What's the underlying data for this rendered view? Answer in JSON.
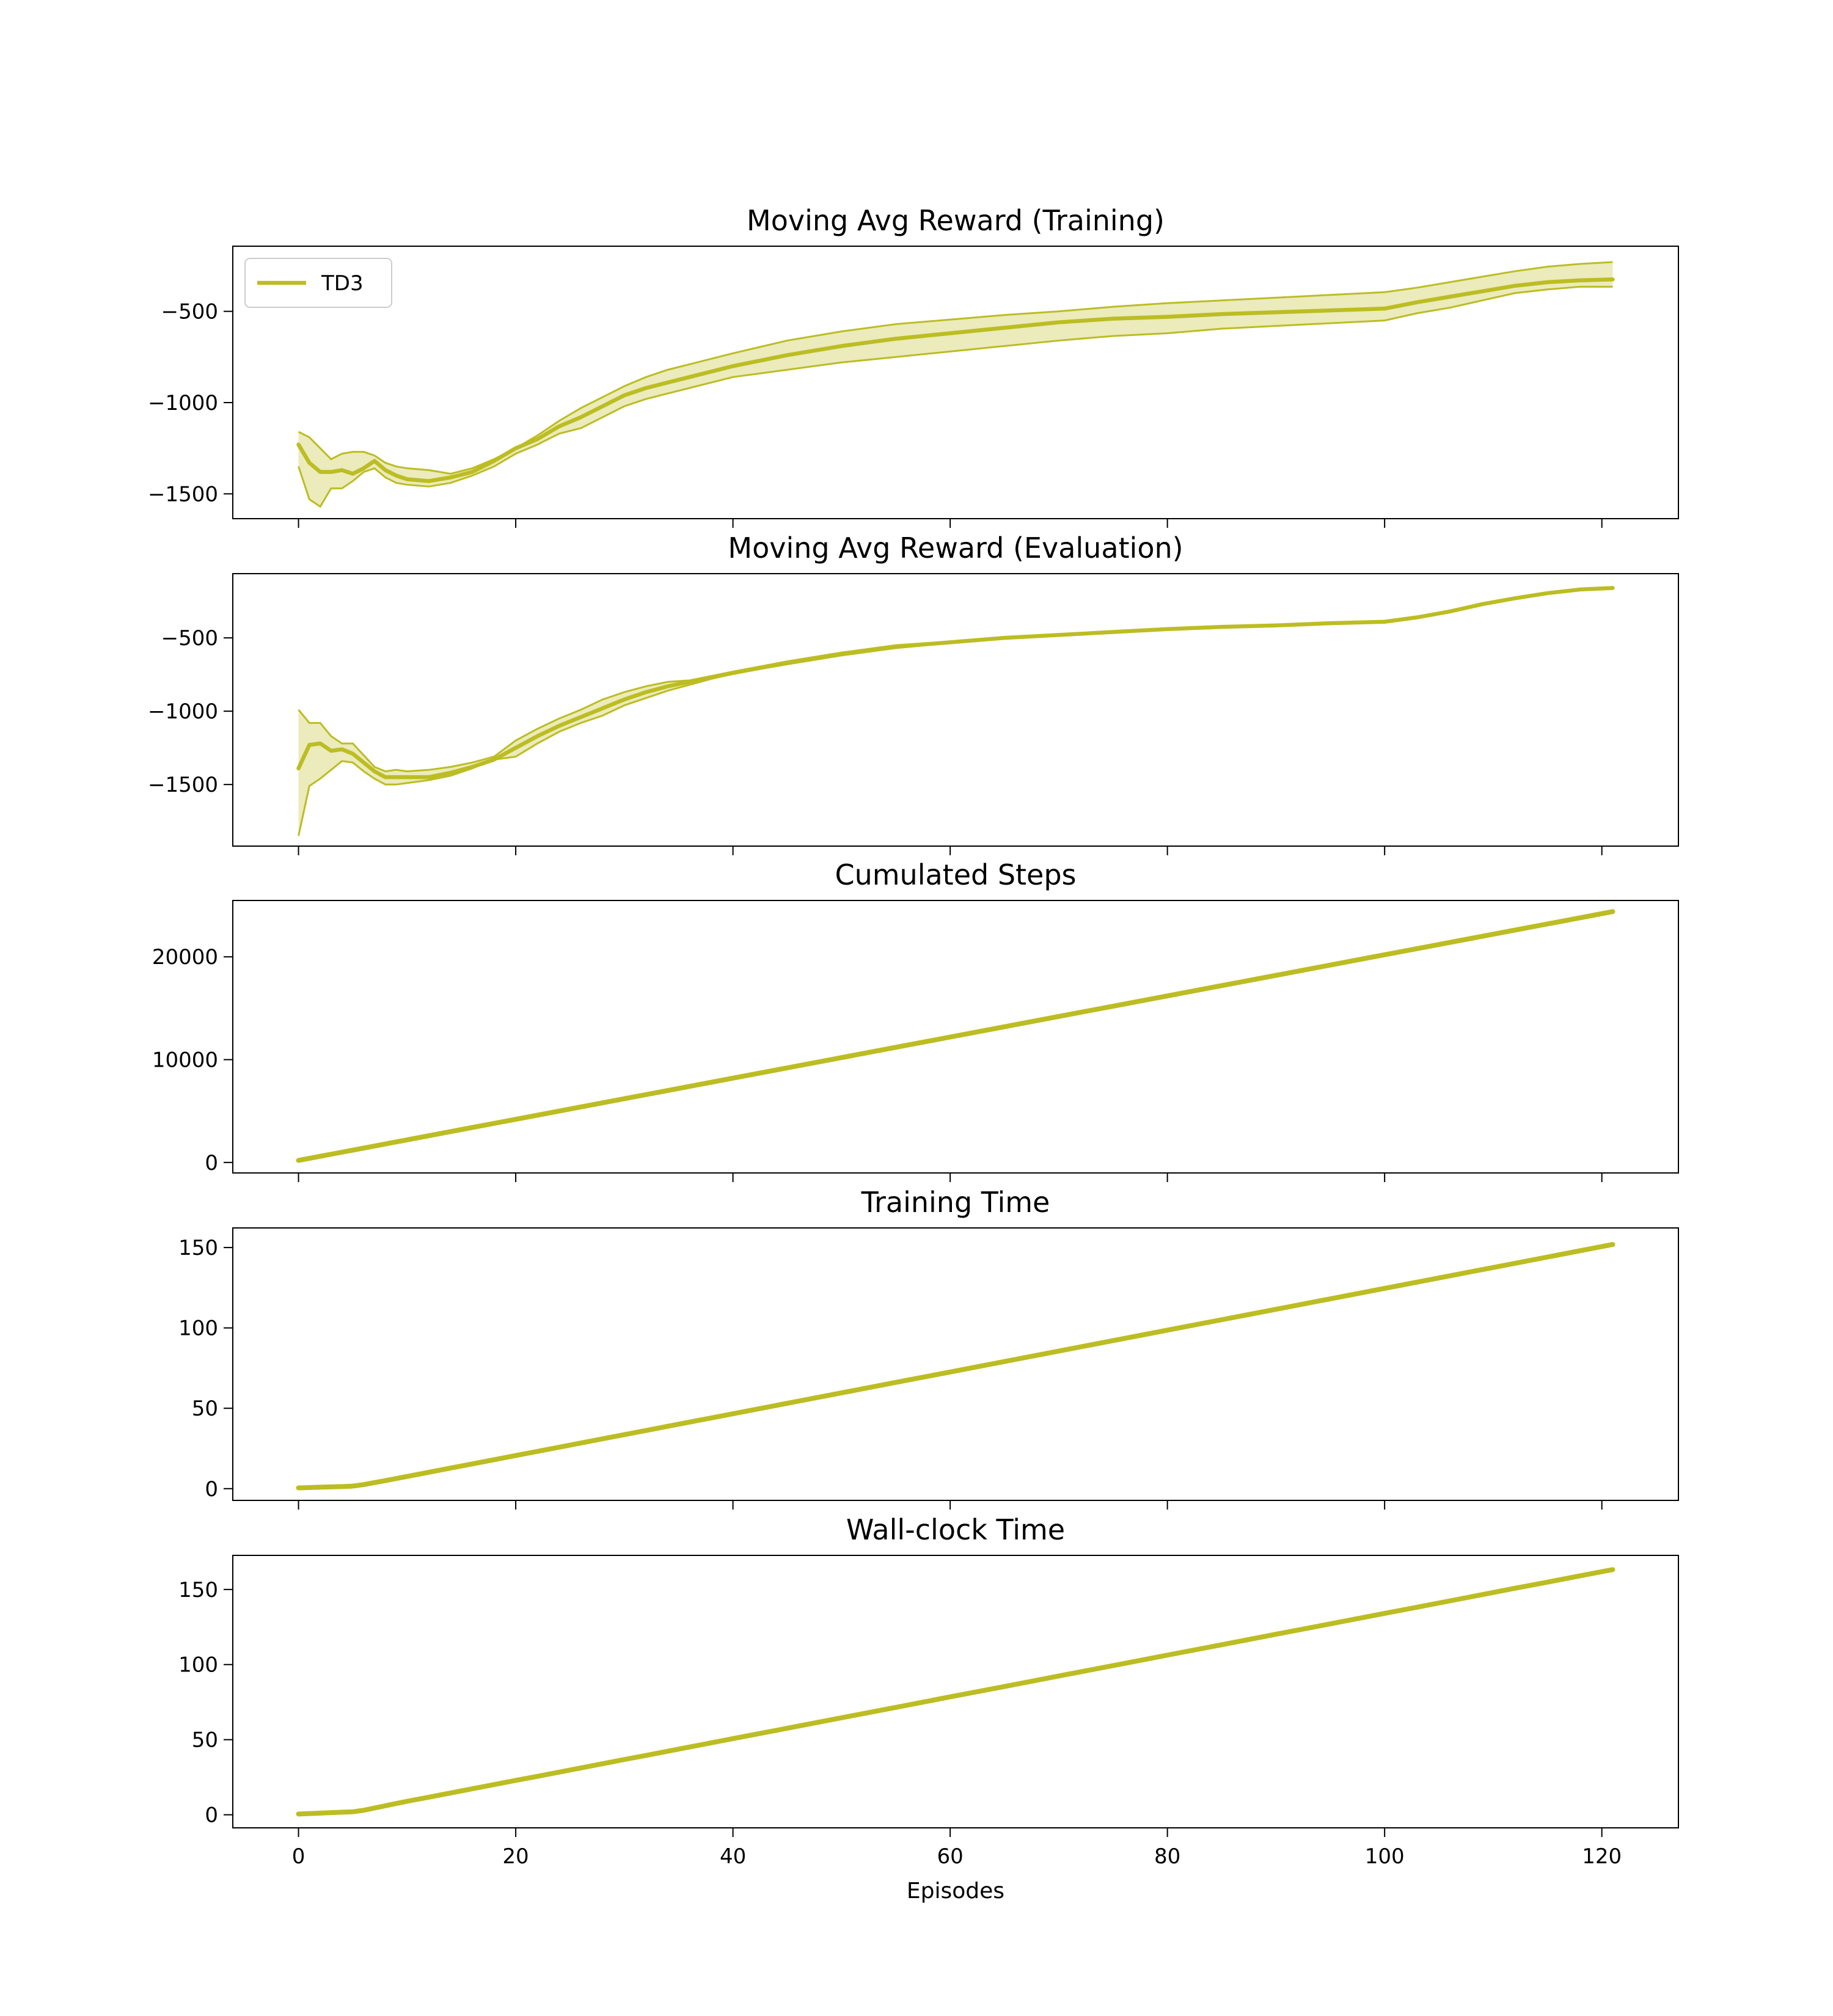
{
  "chart_data": [
    {
      "type": "line",
      "title": "Moving Avg Reward (Training)",
      "legend": "upper left",
      "x": [
        0,
        1,
        2,
        3,
        4,
        5,
        6,
        7,
        8,
        9,
        10,
        12,
        14,
        16,
        18,
        20,
        22,
        24,
        26,
        28,
        30,
        32,
        34,
        36,
        38,
        40,
        45,
        50,
        55,
        60,
        65,
        70,
        75,
        80,
        85,
        90,
        95,
        100,
        103,
        106,
        109,
        112,
        115,
        118,
        121
      ],
      "series": [
        {
          "name": "TD3",
          "color": "#bcbd22",
          "values": [
            -1230,
            -1330,
            -1380,
            -1380,
            -1370,
            -1390,
            -1360,
            -1320,
            -1370,
            -1400,
            -1420,
            -1430,
            -1410,
            -1380,
            -1320,
            -1250,
            -1200,
            -1130,
            -1080,
            -1020,
            -960,
            -920,
            -890,
            -860,
            -830,
            -800,
            -740,
            -690,
            -650,
            -620,
            -590,
            -560,
            -540,
            -530,
            -515,
            -505,
            -495,
            -485,
            -450,
            -420,
            -390,
            -360,
            -340,
            -330,
            -325
          ],
          "upper": [
            -1160,
            -1190,
            -1250,
            -1310,
            -1280,
            -1270,
            -1270,
            -1290,
            -1330,
            -1350,
            -1360,
            -1370,
            -1390,
            -1360,
            -1310,
            -1250,
            -1180,
            -1100,
            -1030,
            -970,
            -910,
            -860,
            -820,
            -790,
            -760,
            -730,
            -660,
            -610,
            -570,
            -545,
            -520,
            -500,
            -475,
            -455,
            -440,
            -425,
            -410,
            -395,
            -370,
            -340,
            -310,
            -280,
            -255,
            -240,
            -230
          ],
          "lower": [
            -1350,
            -1530,
            -1570,
            -1470,
            -1470,
            -1430,
            -1380,
            -1360,
            -1410,
            -1440,
            -1450,
            -1460,
            -1440,
            -1400,
            -1350,
            -1280,
            -1230,
            -1170,
            -1140,
            -1080,
            -1020,
            -980,
            -950,
            -920,
            -890,
            -860,
            -820,
            -780,
            -750,
            -720,
            -690,
            -660,
            -635,
            -620,
            -595,
            -580,
            -565,
            -550,
            -510,
            -480,
            -440,
            -400,
            -380,
            -365,
            -365
          ]
        }
      ],
      "xlim": [
        -6.05,
        127.05
      ],
      "ylim": [
        -1636,
        -143
      ],
      "yticks": [
        {
          "value": -1500,
          "label": "−1500"
        },
        {
          "value": -1000,
          "label": "−1000"
        },
        {
          "value": -500,
          "label": "−500"
        }
      ]
    },
    {
      "type": "line",
      "title": "Moving Avg Reward (Evaluation)",
      "x": [
        0,
        1,
        2,
        3,
        4,
        5,
        6,
        7,
        8,
        9,
        10,
        12,
        14,
        16,
        18,
        20,
        22,
        24,
        26,
        28,
        30,
        32,
        34,
        36,
        38,
        40,
        45,
        50,
        55,
        60,
        65,
        70,
        75,
        80,
        85,
        90,
        95,
        100,
        103,
        106,
        109,
        112,
        115,
        118,
        121
      ],
      "series": [
        {
          "name": "TD3",
          "color": "#bcbd22",
          "values": [
            -1390,
            -1230,
            -1220,
            -1270,
            -1260,
            -1290,
            -1350,
            -1410,
            -1450,
            -1450,
            -1450,
            -1450,
            -1420,
            -1380,
            -1330,
            -1250,
            -1170,
            -1100,
            -1040,
            -980,
            -920,
            -870,
            -830,
            -800,
            -770,
            -740,
            -670,
            -610,
            -560,
            -530,
            -500,
            -480,
            -460,
            -440,
            -425,
            -415,
            -400,
            -390,
            -360,
            -320,
            -270,
            -230,
            -195,
            -170,
            -160
          ],
          "upper": [
            -990,
            -1080,
            -1080,
            -1170,
            -1220,
            -1220,
            -1300,
            -1380,
            -1410,
            -1400,
            -1410,
            -1400,
            -1380,
            -1350,
            -1310,
            -1200,
            -1120,
            -1050,
            -990,
            -920,
            -870,
            -830,
            -800,
            -790,
            -760,
            -730,
            -660,
            -600,
            -550,
            -525,
            -495,
            -475,
            -455,
            -435,
            -420,
            -410,
            -395,
            -385,
            -355,
            -315,
            -265,
            -225,
            -190,
            -165,
            -155
          ],
          "lower": [
            -1850,
            -1510,
            -1460,
            -1400,
            -1340,
            -1350,
            -1410,
            -1460,
            -1500,
            -1500,
            -1490,
            -1470,
            -1440,
            -1390,
            -1330,
            -1310,
            -1220,
            -1140,
            -1080,
            -1030,
            -960,
            -910,
            -860,
            -820,
            -780,
            -745,
            -680,
            -620,
            -570,
            -535,
            -505,
            -485,
            -465,
            -445,
            -430,
            -420,
            -405,
            -395,
            -365,
            -325,
            -275,
            -235,
            -200,
            -175,
            -165
          ]
        }
      ],
      "xlim": [
        -6.05,
        127.05
      ],
      "ylim": [
        -1920,
        -62
      ],
      "yticks": [
        {
          "value": -1500,
          "label": "−1500"
        },
        {
          "value": -1000,
          "label": "−1000"
        },
        {
          "value": -500,
          "label": "−500"
        }
      ]
    },
    {
      "type": "line",
      "title": "Cumulated Steps",
      "x": [
        0,
        1,
        2,
        3,
        4,
        5,
        6,
        7,
        8,
        9,
        10,
        12,
        14,
        16,
        18,
        20,
        22,
        24,
        26,
        28,
        30,
        32,
        34,
        36,
        38,
        40,
        45,
        50,
        55,
        60,
        65,
        70,
        75,
        80,
        85,
        90,
        95,
        100,
        103,
        106,
        109,
        112,
        115,
        118,
        121
      ],
      "series": [
        {
          "name": "TD3",
          "color": "#bcbd22",
          "values": [
            200,
            400,
            600,
            800,
            1000,
            1200,
            1400,
            1600,
            1800,
            2000,
            2200,
            2600,
            3000,
            3400,
            3800,
            4200,
            4600,
            5000,
            5400,
            5800,
            6200,
            6600,
            7000,
            7400,
            7800,
            8200,
            9200,
            10200,
            11200,
            12200,
            13200,
            14200,
            15200,
            16200,
            17200,
            18200,
            19200,
            20200,
            20800,
            21400,
            22000,
            22600,
            23200,
            23800,
            24400
          ]
        }
      ],
      "xlim": [
        -6.05,
        127.05
      ],
      "ylim": [
        -1020,
        25480
      ],
      "yticks": [
        0,
        10000,
        20000
      ]
    },
    {
      "type": "line",
      "title": "Training Time",
      "x": [
        0,
        1,
        2,
        3,
        4,
        5,
        6,
        7,
        8,
        9,
        10,
        12,
        14,
        16,
        18,
        20,
        22,
        24,
        26,
        28,
        30,
        32,
        34,
        36,
        38,
        40,
        45,
        50,
        55,
        60,
        65,
        70,
        75,
        80,
        85,
        90,
        95,
        100,
        103,
        106,
        109,
        112,
        115,
        118,
        121
      ],
      "series": [
        {
          "name": "TD3",
          "color": "#bcbd22",
          "values": [
            0.5,
            0.7,
            0.9,
            1.1,
            1.3,
            1.6,
            2.5,
            3.8,
            5,
            6.3,
            7.6,
            10.2,
            12.8,
            15.4,
            18,
            20.6,
            23.2,
            25.8,
            28.4,
            31,
            33.6,
            36.2,
            38.8,
            41.4,
            44,
            46.6,
            53.1,
            59.6,
            66.1,
            72.6,
            79.1,
            85.6,
            92.1,
            98.6,
            105.1,
            111.6,
            118.1,
            124.6,
            128.5,
            132.4,
            136.3,
            140.2,
            144.1,
            148,
            151.9
          ]
        }
      ],
      "xlim": [
        -6.05,
        127.05
      ],
      "ylim": [
        -7.3,
        162.2
      ],
      "yticks": [
        0,
        50,
        100,
        150
      ]
    },
    {
      "type": "line",
      "title": "Wall-clock Time",
      "xlabel": "Episodes",
      "x": [
        0,
        1,
        2,
        3,
        4,
        5,
        6,
        7,
        8,
        9,
        10,
        12,
        14,
        16,
        18,
        20,
        22,
        24,
        26,
        28,
        30,
        32,
        34,
        36,
        38,
        40,
        45,
        50,
        55,
        60,
        65,
        70,
        75,
        80,
        85,
        90,
        95,
        100,
        103,
        106,
        109,
        112,
        115,
        118,
        121
      ],
      "series": [
        {
          "name": "TD3",
          "color": "#bcbd22",
          "values": [
            0.5,
            0.8,
            1.1,
            1.4,
            1.7,
            2,
            3,
            4.5,
            6,
            7.5,
            9,
            11.7,
            14.5,
            17.3,
            20.1,
            22.9,
            25.6,
            28.4,
            31.2,
            34,
            36.8,
            39.5,
            42.3,
            45.1,
            47.9,
            50.7,
            57.6,
            64.6,
            71.5,
            78.5,
            85.4,
            92.4,
            99.3,
            106.3,
            113.2,
            120.2,
            127.1,
            134.1,
            138.2,
            142.4,
            146.6,
            150.8,
            154.9,
            159.1,
            163.2
          ]
        }
      ],
      "xlim": [
        -6.05,
        127.05
      ],
      "ylim": [
        -8.7,
        172.7
      ],
      "xticks": [
        0,
        20,
        40,
        60,
        80,
        100,
        120
      ],
      "yticks": [
        0,
        50,
        100,
        150
      ]
    }
  ]
}
